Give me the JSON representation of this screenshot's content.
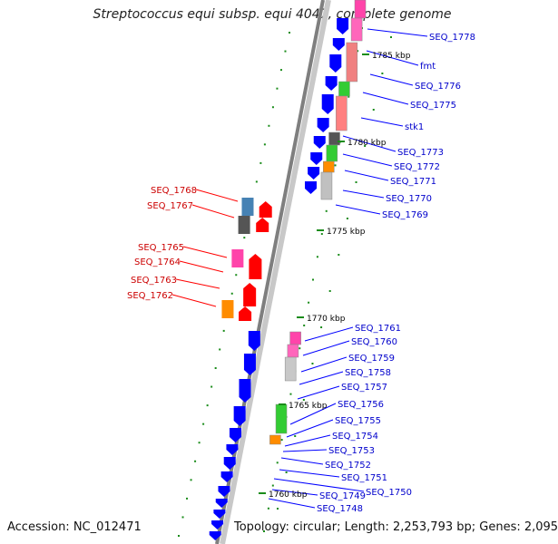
{
  "title": "Streptococcus equi subsp. equi 4047, complete genome",
  "accession": "Accession: NC_012471",
  "topology": "Topology: circular; Length: 2,253,793 bp; Genes: 2,095",
  "colors": {
    "backbone": "#7f7f7f",
    "cds": "#0000ff",
    "rna_red": "#ff0000",
    "tick_green": "#1a8c1a",
    "label_blue": "#0000cc",
    "label_red": "#cc0000"
  },
  "kbp_marks": [
    "1785 kbp",
    "1780 kbp",
    "1775 kbp",
    "1770 kbp",
    "1765 kbp",
    "1760 kbp"
  ],
  "right_labels": [
    "SEQ_1778",
    "fmt",
    "SEQ_1776",
    "SEQ_1775",
    "stk1",
    "SEQ_1773",
    "SEQ_1772",
    "SEQ_1771",
    "SEQ_1770",
    "SEQ_1769",
    "SEQ_1761",
    "SEQ_1760",
    "SEQ_1759",
    "SEQ_1758",
    "SEQ_1757",
    "SEQ_1756",
    "SEQ_1755",
    "SEQ_1754",
    "SEQ_1753",
    "SEQ_1752",
    "SEQ_1751",
    "SEQ_1750",
    "SEQ_1749",
    "SEQ_1748"
  ],
  "left_labels": [
    "SEQ_1768",
    "SEQ_1767",
    "SEQ_1765",
    "SEQ_1764",
    "SEQ_1763",
    "SEQ_1762"
  ]
}
